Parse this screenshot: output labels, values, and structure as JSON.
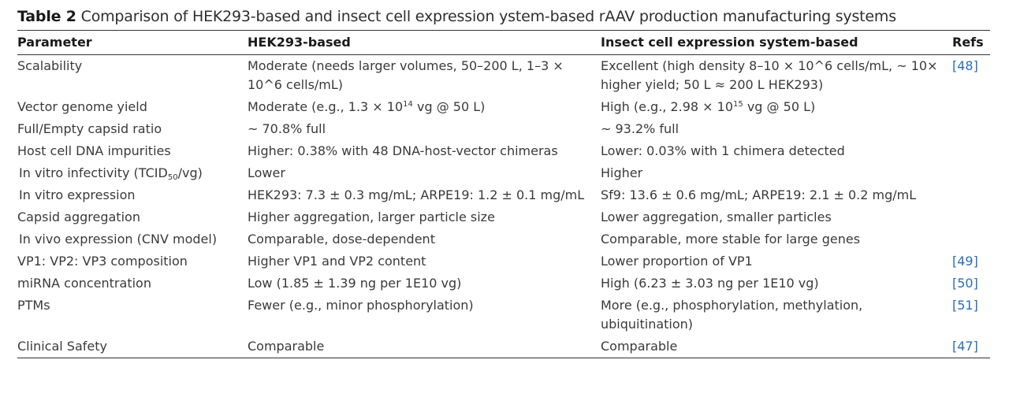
{
  "caption": {
    "label": "Table 2",
    "text": "Comparison of HEK293-based and insect cell expression ystem-based rAAV production manufacturing systems"
  },
  "headers": [
    "Parameter",
    "HEK293-based",
    "Insect cell expression system-based",
    "Refs"
  ],
  "rows": [
    {
      "param": "Scalability",
      "hek": "Moderate (needs larger volumes, 50–200 L, 1–3 × 10^6 cells/mL)",
      "insect": "Excellent (high density 8–10 × 10^6 cells/mL, ~ 10× higher yield; 50 L ≈ 200 L HEK293)",
      "ref": "[48]"
    },
    {
      "param": "Vector genome yield",
      "hek_pre": "Moderate (e.g., 1.3 × 10",
      "hek_sup": "14",
      "hek_post": " vg @ 50 L)",
      "insect_pre": "High (e.g., 2.98 × 10",
      "insect_sup": "15",
      "insect_post": " vg @ 50 L)",
      "ref": ""
    },
    {
      "param": "Full/Empty capsid ratio",
      "hek": "~ 70.8% full",
      "insect": "~ 93.2% full",
      "ref": ""
    },
    {
      "param": "Host cell DNA impurities",
      "hek": "Higher: 0.38% with 48 DNA-host-vector chimeras",
      "insect": "Lower: 0.03% with 1 chimera detected",
      "ref": ""
    },
    {
      "param_pre": " In vitro infectivity (TCID",
      "param_sub": "50",
      "param_post": "/vg)",
      "hek": "Lower",
      "insect": "Higher",
      "ref": ""
    },
    {
      "param": " In vitro expression",
      "hek": "HEK293: 7.3 ± 0.3 mg/mL; ARPE19: 1.2 ± 0.1 mg/mL",
      "insect": "Sf9: 13.6 ± 0.6 mg/mL; ARPE19: 2.1 ± 0.2 mg/mL",
      "ref": ""
    },
    {
      "param": "Capsid aggregation",
      "hek": "Higher aggregation, larger particle size",
      "insect": "Lower aggregation, smaller particles",
      "ref": ""
    },
    {
      "param": " In vivo expression (CNV model)",
      "hek": "Comparable, dose-dependent",
      "insect": "Comparable, more stable for large genes",
      "ref": ""
    },
    {
      "param": "VP1: VP2: VP3 composition",
      "hek": "Higher VP1 and VP2 content",
      "insect": "Lower proportion of VP1",
      "ref": "[49]"
    },
    {
      "param": "miRNA concentration",
      "hek": "Low (1.85 ± 1.39 ng per 1E10 vg)",
      "insect": "High (6.23 ± 3.03 ng per 1E10 vg)",
      "ref": "[50]"
    },
    {
      "param": "PTMs",
      "hek": "Fewer (e.g., minor phosphorylation)",
      "insect": "More (e.g., phosphorylation, methylation, ubiquitination)",
      "ref": "[51]"
    },
    {
      "param": "Clinical Safety",
      "hek": "Comparable",
      "insect": "Comparable",
      "ref": "[47]"
    }
  ]
}
